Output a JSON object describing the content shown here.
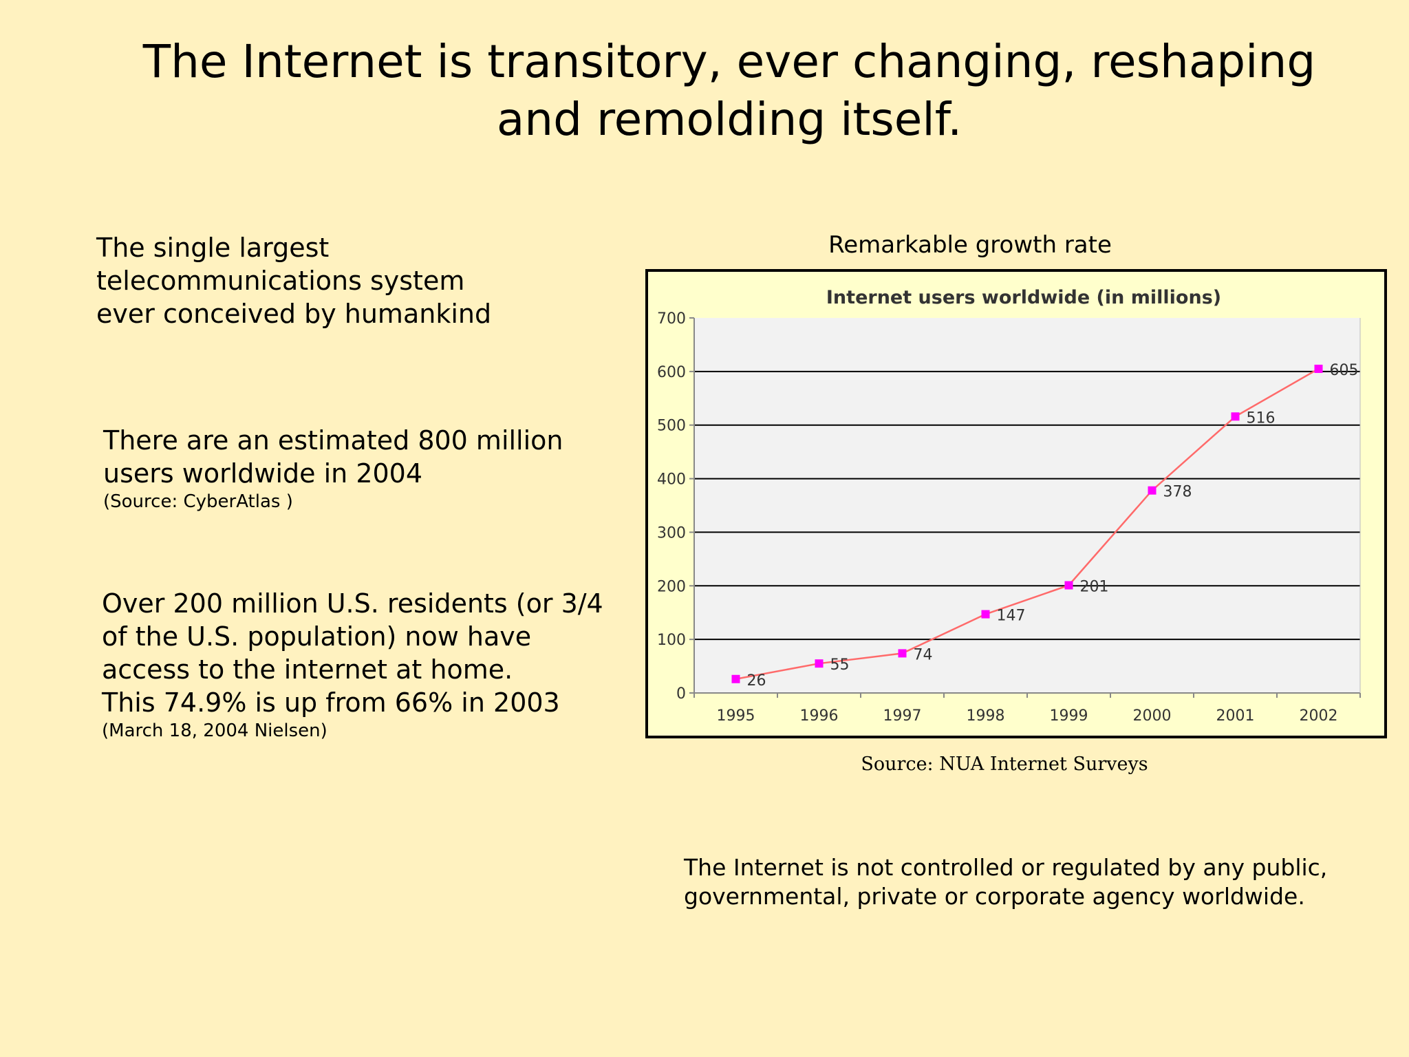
{
  "slide": {
    "title": "The Internet is transitory, ever changing, reshaping and remolding itself.",
    "block_largest": "The single largest telecommunications system ever conceived by humankind",
    "block_users": {
      "text": "There are an estimated 800 million users worldwide in 2004",
      "source": "(Source: CyberAtlas )"
    },
    "block_us": {
      "line1": "Over 200 million U.S. residents (or 3/4 of the U.S. population) now have access to the internet at home.",
      "line2": "This 74.9%  is up from  66% in 2003",
      "source": "(March 18, 2004 Nielsen)"
    },
    "chart_caption": "Remarkable growth rate",
    "chart_source": "Source: NUA Internet Surveys",
    "block_regulation": "The Internet is not controlled or regulated by any public, governmental, private or corporate agency worldwide."
  },
  "chart_data": {
    "type": "line",
    "title": "Internet users worldwide (in millions)",
    "categories": [
      "1995",
      "1996",
      "1997",
      "1998",
      "1999",
      "2000",
      "2001",
      "2002"
    ],
    "series": [
      {
        "values": [
          26,
          55,
          74,
          147,
          201,
          378,
          516,
          605
        ]
      }
    ],
    "data_labels": [
      "26",
      "55",
      "74",
      "147",
      "201",
      "378",
      "516",
      "605"
    ],
    "xlabel": "",
    "ylabel": "",
    "ylim": [
      0,
      700
    ],
    "yticks": [
      0,
      100,
      200,
      300,
      400,
      500,
      600,
      700
    ],
    "grid": true,
    "legend": "none",
    "colors": {
      "line": "#FF6A6A",
      "marker": "#FF00FF",
      "plot_background": "#F2F2F2",
      "frame_background": "#FFFFCC",
      "grid": "#000000"
    }
  }
}
